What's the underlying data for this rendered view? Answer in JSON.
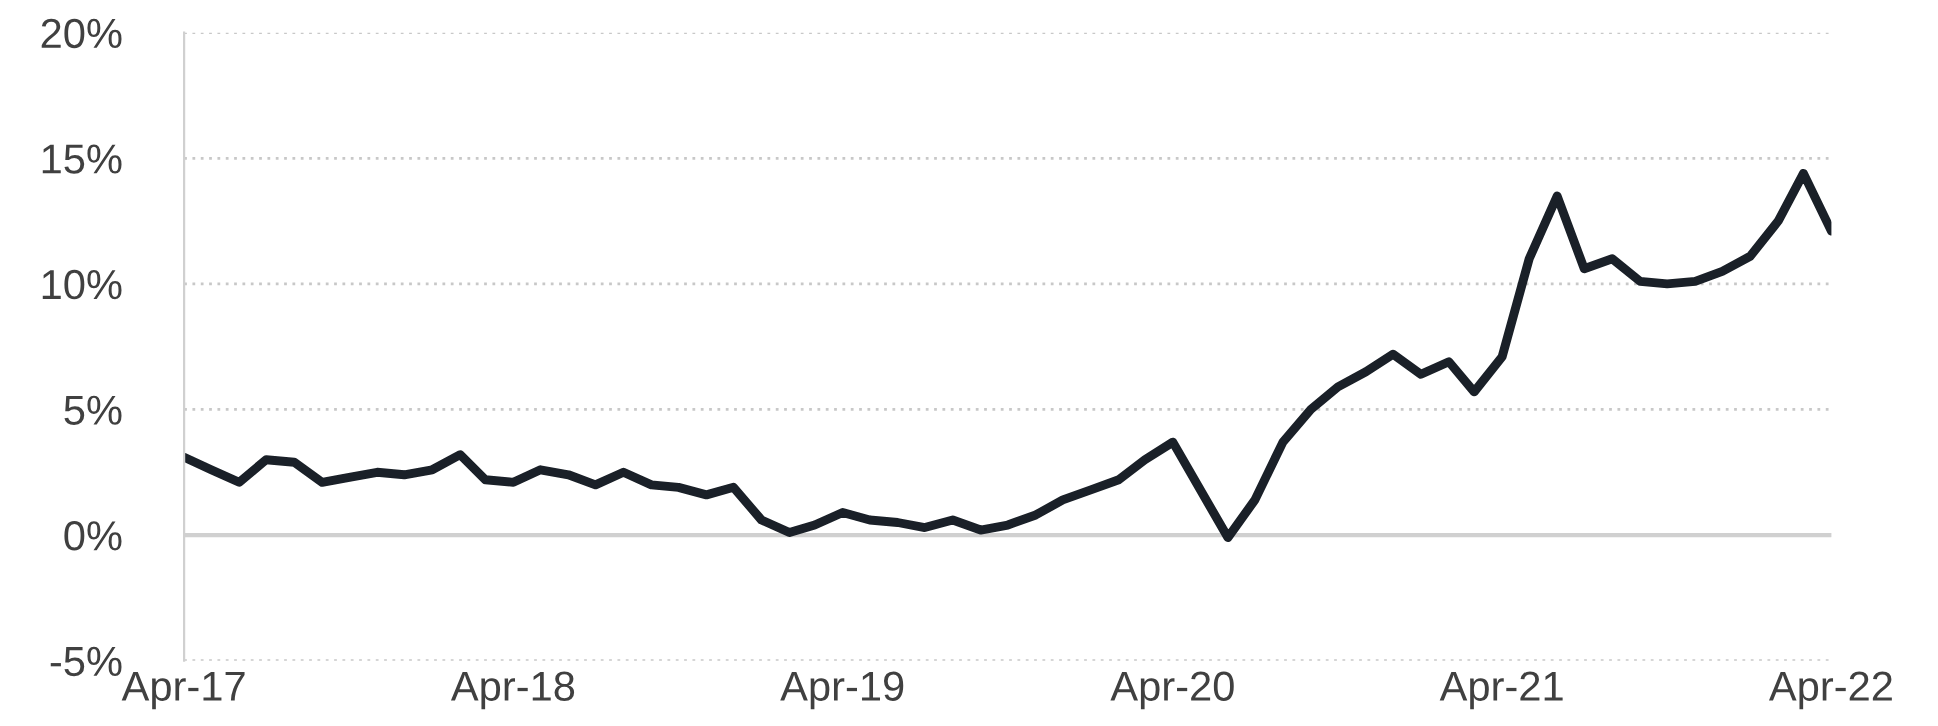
{
  "chart_data": {
    "type": "line",
    "x": [
      "2017-04",
      "2017-05",
      "2017-06",
      "2017-07",
      "2017-08",
      "2017-09",
      "2017-10",
      "2017-11",
      "2017-12",
      "2018-01",
      "2018-02",
      "2018-03",
      "2018-04",
      "2018-05",
      "2018-06",
      "2018-07",
      "2018-08",
      "2018-09",
      "2018-10",
      "2018-11",
      "2018-12",
      "2019-01",
      "2019-02",
      "2019-03",
      "2019-04",
      "2019-05",
      "2019-06",
      "2019-07",
      "2019-08",
      "2019-09",
      "2019-10",
      "2019-11",
      "2019-12",
      "2020-01",
      "2020-02",
      "2020-03",
      "2020-04",
      "2020-06",
      "2020-07",
      "2020-08",
      "2020-09",
      "2020-10",
      "2020-11",
      "2020-12",
      "2021-01",
      "2021-02",
      "2021-03",
      "2021-04",
      "2021-05",
      "2021-06",
      "2021-07",
      "2021-08",
      "2021-09",
      "2021-10",
      "2021-11",
      "2021-12",
      "2022-01",
      "2022-02",
      "2022-03",
      "2022-04"
    ],
    "series": [
      {
        "color": "#1a2028",
        "values": [
          3.1,
          2.6,
          2.1,
          3.0,
          2.9,
          2.1,
          2.3,
          2.5,
          2.4,
          2.6,
          3.2,
          2.2,
          2.1,
          2.6,
          2.4,
          2.0,
          2.5,
          2.0,
          1.9,
          1.6,
          1.9,
          0.6,
          0.1,
          0.4,
          0.9,
          0.6,
          0.5,
          0.3,
          0.6,
          0.2,
          0.4,
          0.8,
          1.4,
          1.8,
          2.2,
          3.0,
          3.7,
          -0.1,
          1.4,
          3.7,
          5.0,
          5.9,
          6.5,
          7.2,
          6.4,
          6.9,
          5.7,
          7.1,
          11.0,
          13.5,
          10.6,
          11.0,
          10.1,
          10.0,
          10.1,
          10.5,
          11.1,
          12.5,
          14.4,
          12.1
        ]
      }
    ],
    "xlim": [
      "2017-04",
      "2022-04"
    ],
    "xticks": [
      {
        "value": "2017-04",
        "label": "Apr-17"
      },
      {
        "value": "2018-04",
        "label": "Apr-18"
      },
      {
        "value": "2019-04",
        "label": "Apr-19"
      },
      {
        "value": "2020-04",
        "label": "Apr-20"
      },
      {
        "value": "2021-04",
        "label": "Apr-21"
      },
      {
        "value": "2022-04",
        "label": "Apr-22"
      }
    ],
    "ylim": [
      -5,
      20
    ],
    "yticks": [
      {
        "value": -5,
        "label": "-5%"
      },
      {
        "value": 0,
        "label": "0%"
      },
      {
        "value": 5,
        "label": "5%"
      },
      {
        "value": 10,
        "label": "10%"
      },
      {
        "value": 15,
        "label": "15%"
      },
      {
        "value": 20,
        "label": "20%"
      }
    ],
    "grid": "y",
    "ref_lines": [
      {
        "axis": "y",
        "value": 0,
        "color": "#d0d0d0",
        "line_style": "solid"
      }
    ],
    "line_style": "solid",
    "marker": "none",
    "legend": false
  }
}
